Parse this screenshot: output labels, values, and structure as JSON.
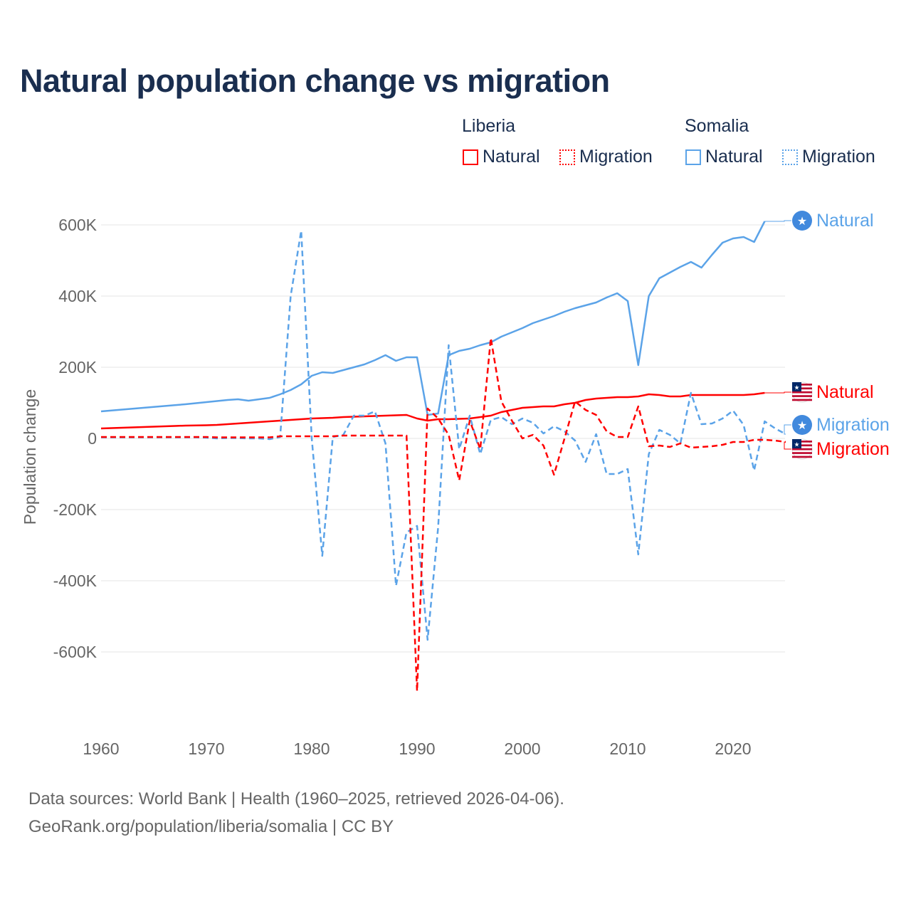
{
  "title": "Natural population change vs migration",
  "legend": {
    "groups": [
      {
        "name": "Liberia",
        "items": [
          {
            "label": "Natural",
            "style": "solid",
            "color": "#ff0000"
          },
          {
            "label": "Migration",
            "style": "dotted",
            "color": "#ff0000"
          }
        ]
      },
      {
        "name": "Somalia",
        "items": [
          {
            "label": "Natural",
            "style": "solid",
            "color": "#5ba3e8"
          },
          {
            "label": "Migration",
            "style": "dotted",
            "color": "#5ba3e8"
          }
        ]
      }
    ]
  },
  "footer": {
    "line1": "Data sources: World Bank | Health (1960–2025, retrieved 2026-04-06).",
    "line2": "GeoRank.org/population/liberia/somalia | CC BY"
  },
  "chart_data": {
    "type": "line",
    "title": "Natural population change vs migration",
    "xlabel": "",
    "ylabel": "Population change",
    "xlim": [
      1960,
      2025
    ],
    "ylim": [
      -800000,
      650000
    ],
    "xticks": [
      1960,
      1970,
      1980,
      1990,
      2000,
      2010,
      2020
    ],
    "yticks": [
      {
        "v": 600000,
        "label": "600K"
      },
      {
        "v": 400000,
        "label": "400K"
      },
      {
        "v": 200000,
        "label": "200K"
      },
      {
        "v": 0,
        "label": "0"
      },
      {
        "v": -200000,
        "label": "-200K"
      },
      {
        "v": -400000,
        "label": "-400K"
      },
      {
        "v": -600000,
        "label": "-600K"
      }
    ],
    "grid": true,
    "series": [
      {
        "name": "Somalia Natural",
        "country": "Somalia",
        "kind": "Natural",
        "color": "#5ba3e8",
        "dashed": false,
        "end_label": "Natural",
        "flag": "somalia",
        "start": 1960,
        "values": [
          76000,
          78500,
          81000,
          83500,
          86000,
          88500,
          91000,
          93500,
          96000,
          99000,
          102000,
          105000,
          108000,
          110000,
          106000,
          110000,
          114000,
          124000,
          136000,
          152000,
          176000,
          186000,
          184000,
          192000,
          200000,
          208000,
          220000,
          234000,
          218000,
          228000,
          228000,
          66000,
          70000,
          234000,
          246000,
          252000,
          262000,
          270000,
          286000,
          298000,
          310000,
          324000,
          334000,
          344000,
          356000,
          366000,
          374000,
          382000,
          396000,
          408000,
          386000,
          206000,
          400000,
          450000,
          466000,
          482000,
          496000,
          480000,
          516000,
          550000,
          562000,
          566000,
          552000,
          610000
        ]
      },
      {
        "name": "Liberia Natural",
        "country": "Liberia",
        "kind": "Natural",
        "color": "#ff0000",
        "dashed": false,
        "end_label": "Natural",
        "flag": "liberia",
        "start": 1960,
        "values": [
          28000,
          29000,
          30000,
          31000,
          32000,
          33000,
          34000,
          35000,
          36000,
          36500,
          37000,
          38000,
          40000,
          42000,
          44000,
          46000,
          48000,
          50000,
          52000,
          54000,
          56000,
          57000,
          58000,
          60000,
          61000,
          62000,
          63000,
          64000,
          65000,
          66000,
          56000,
          50000,
          54000,
          54000,
          55000,
          56000,
          60000,
          64000,
          74000,
          80000,
          86000,
          88000,
          90000,
          90000,
          96000,
          100000,
          108000,
          112000,
          114000,
          116000,
          116000,
          118000,
          124000,
          122000,
          118000,
          118000,
          122000,
          122000,
          122000,
          122000,
          122000,
          122000,
          124000,
          128000
        ]
      },
      {
        "name": "Somalia Migration",
        "country": "Somalia",
        "kind": "Migration",
        "color": "#5ba3e8",
        "dashed": true,
        "end_label": "Migration",
        "flag": "somalia",
        "start": 1960,
        "values": [
          3000,
          3000,
          3000,
          3000,
          3000,
          3000,
          3000,
          3000,
          3000,
          3000,
          2000,
          0,
          1000,
          1000,
          0,
          0,
          -2000,
          4000,
          400000,
          584000,
          0,
          -330000,
          4000,
          10000,
          64000,
          64000,
          76000,
          -14000,
          -414000,
          -264000,
          -246000,
          -566000,
          -250000,
          262000,
          -30000,
          64000,
          -44000,
          52000,
          60000,
          40000,
          56000,
          44000,
          14000,
          34000,
          20000,
          -6000,
          -66000,
          12000,
          -100000,
          -100000,
          -86000,
          -326000,
          -44000,
          24000,
          10000,
          -14000,
          128000,
          40000,
          42000,
          56000,
          78000,
          38000,
          -90000,
          48000,
          28000,
          12000
        ]
      },
      {
        "name": "Liberia Migration",
        "country": "Liberia",
        "kind": "Migration",
        "color": "#ff0000",
        "dashed": true,
        "end_label": "Migration",
        "flag": "liberia",
        "start": 1960,
        "values": [
          4000,
          4000,
          4000,
          4000,
          4000,
          4000,
          4000,
          4000,
          4000,
          4000,
          4000,
          3000,
          3000,
          3000,
          3000,
          3000,
          3000,
          6000,
          6000,
          6000,
          6000,
          6000,
          6000,
          8000,
          8000,
          8000,
          8000,
          8000,
          8000,
          8000,
          -710000,
          84000,
          56000,
          10000,
          -118000,
          50000,
          -30000,
          282000,
          104000,
          50000,
          0,
          10000,
          -20000,
          -102000,
          0,
          104000,
          80000,
          66000,
          20000,
          4000,
          4000,
          90000,
          -22000,
          -20000,
          -24000,
          -14000,
          -26000,
          -24000,
          -22000,
          -18000,
          -10000,
          -10000,
          -4000,
          -4000,
          -6000,
          -10000
        ]
      }
    ]
  }
}
